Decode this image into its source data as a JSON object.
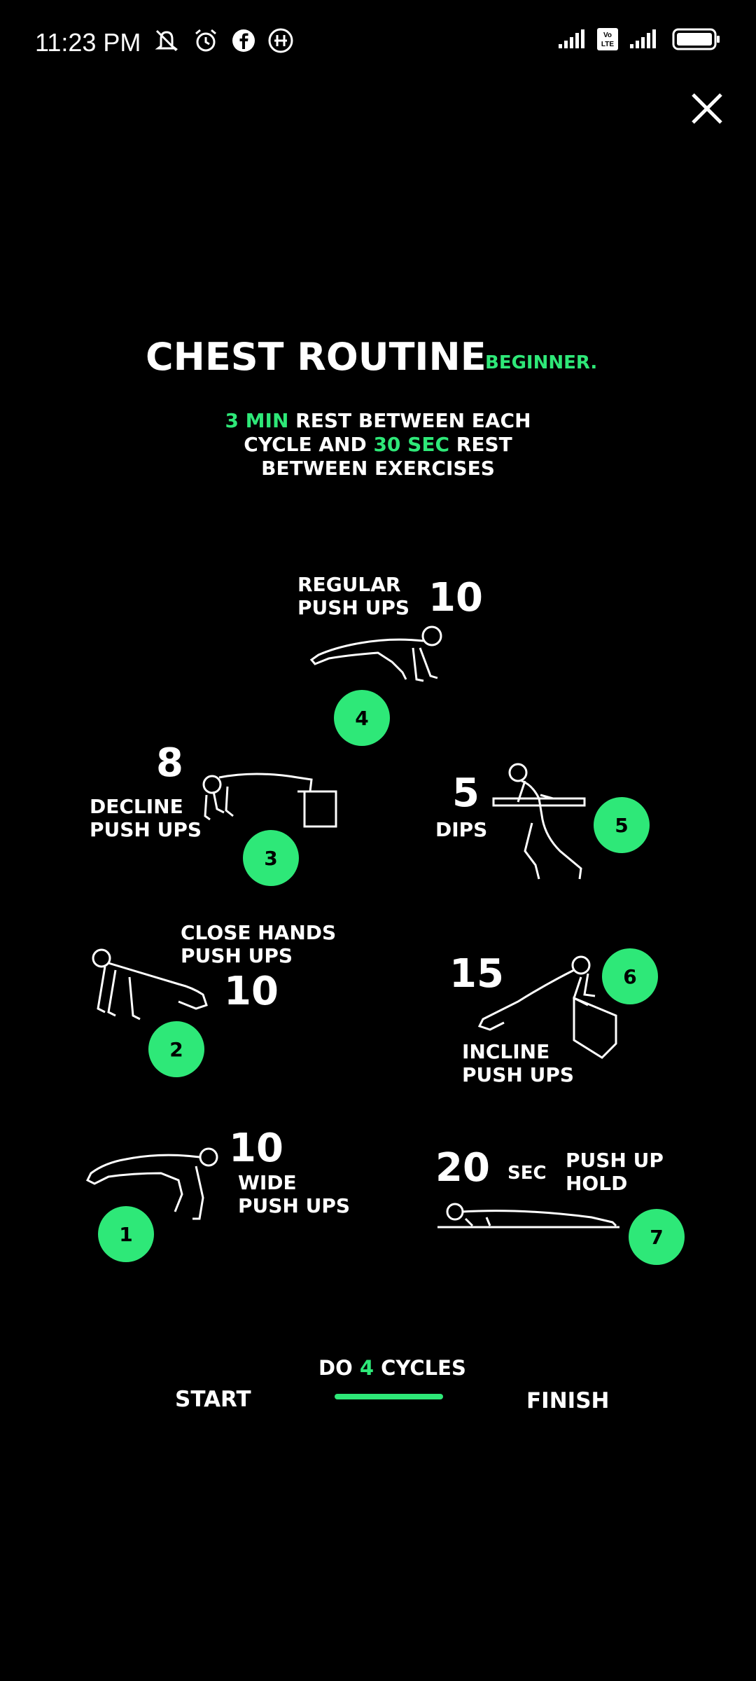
{
  "status_bar": {
    "time": "11:23 PM",
    "icons_left": [
      "mute-icon",
      "alarm-icon",
      "facebook-icon",
      "hike-icon"
    ],
    "icons_right": [
      "signal-icon",
      "volte-icon",
      "signal-icon-2",
      "battery-icon"
    ]
  },
  "header": {
    "title": "CHEST ROUTINE",
    "subtitle": "BEGINNER."
  },
  "rest": {
    "min_value": "3 MIN",
    "line1_rest": "REST BETWEEN EACH",
    "line2_start": "CYCLE AND",
    "sec_value": "30 SEC",
    "line2_end": "REST",
    "line3": "BETWEEN EXERCISES"
  },
  "exercises": [
    {
      "step": "1",
      "name_line1": "WIDE",
      "name_line2": "PUSH UPS",
      "reps": "10"
    },
    {
      "step": "2",
      "name_line1": "CLOSE HANDS",
      "name_line2": "PUSH UPS",
      "reps": "10"
    },
    {
      "step": "3",
      "name_line1": "DECLINE",
      "name_line2": "PUSH UPS",
      "reps": "8"
    },
    {
      "step": "4",
      "name_line1": "REGULAR",
      "name_line2": "PUSH UPS",
      "reps": "10"
    },
    {
      "step": "5",
      "name_line1": "DIPS",
      "reps": "5"
    },
    {
      "step": "6",
      "name_line1": "INCLINE",
      "name_line2": "PUSH UPS",
      "reps": "15"
    },
    {
      "step": "7",
      "name_line1": "PUSH UP",
      "name_line2": "HOLD",
      "reps": "20",
      "unit": "SEC"
    }
  ],
  "footer": {
    "cycles_prefix": "DO",
    "cycles_value": "4",
    "cycles_suffix": "CYCLES",
    "start": "START",
    "finish": "FINISH"
  },
  "colors": {
    "accent": "#2ee878",
    "background": "#000000",
    "text": "#ffffff"
  }
}
